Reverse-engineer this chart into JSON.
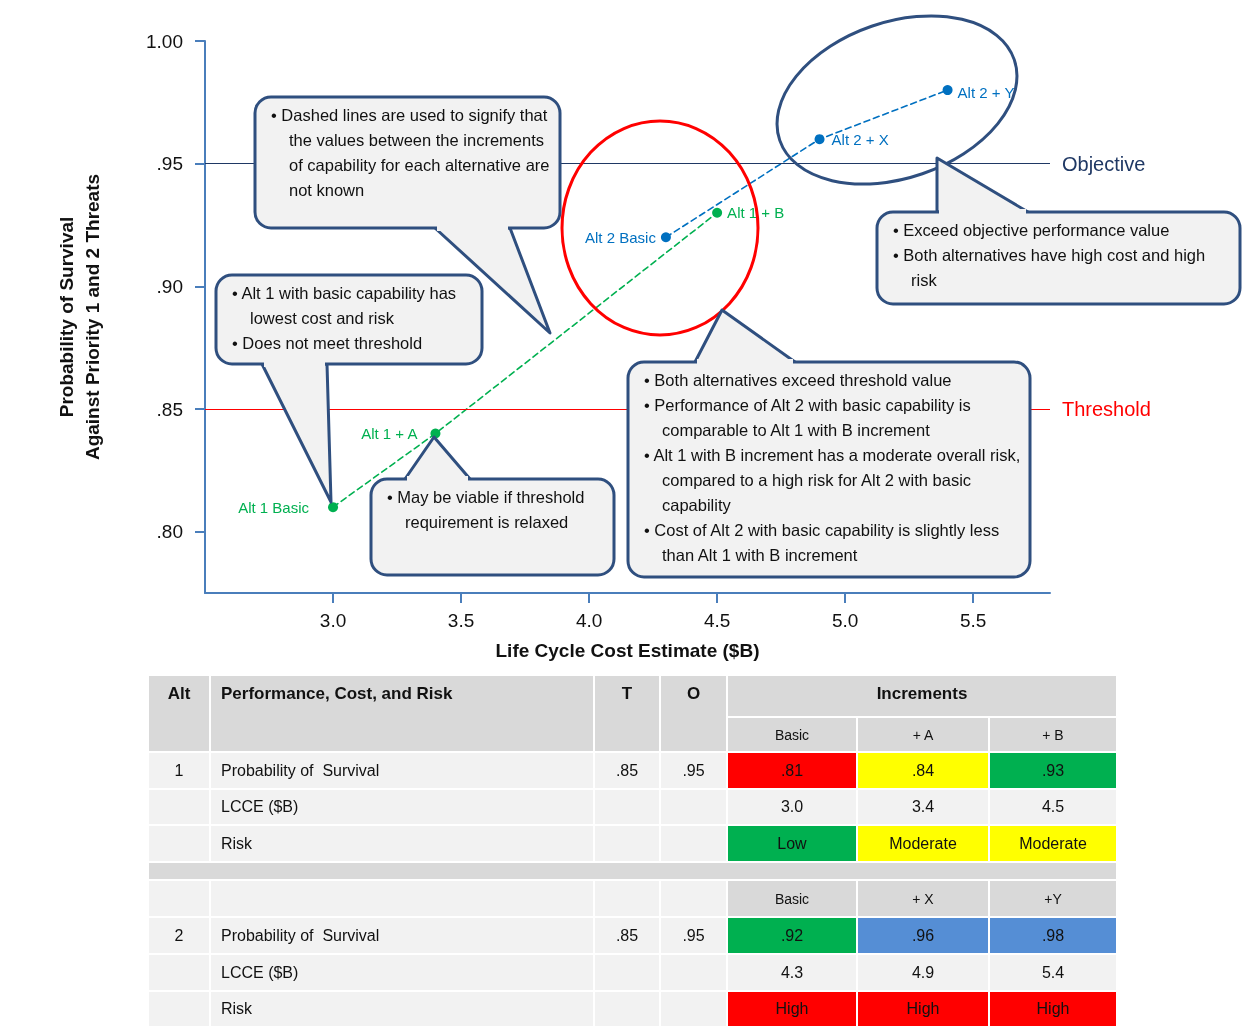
{
  "chart_data": [
    {
      "type": "line",
      "xlabel": "Life Cycle Cost Estimate ($B)",
      "ylabel": "Probability of Survival\nAgainst Priority 1 and 2 Threats",
      "series": [
        {
          "color": "#00b050",
          "x": [
            3.0,
            3.4,
            4.5
          ],
          "values": [
            0.81,
            0.84,
            0.93
          ]
        },
        {
          "color": "#0070c0",
          "x": [
            4.3,
            4.9,
            5.4
          ],
          "values": [
            0.92,
            0.96,
            0.98
          ]
        }
      ],
      "marker": "circle",
      "line_style": "dashed",
      "grid": false,
      "xlim": [
        2.5,
        5.8
      ],
      "xticks": [
        {
          "value": 3,
          "label": "3.0"
        },
        {
          "value": 3.5,
          "label": "3.5"
        },
        {
          "value": 4,
          "label": "4.0"
        },
        {
          "value": 4.5,
          "label": "4.5"
        },
        {
          "value": 5,
          "label": "5.0"
        },
        {
          "value": 5.5,
          "label": "5.5"
        }
      ],
      "ylim": [
        0.775,
        1.0
      ],
      "yticks": [
        {
          "value": 0.8,
          "label": ".80"
        },
        {
          "value": 0.85,
          "label": ".85"
        },
        {
          "value": 0.9,
          "label": ".90"
        },
        {
          "value": 0.95,
          "label": ".95"
        },
        {
          "value": 1.0,
          "label": "1.00"
        }
      ],
      "ref_lines": [
        {
          "axis": "y",
          "value": 0.85,
          "label": "Threshold",
          "color": "#ff0000"
        },
        {
          "axis": "y",
          "value": 0.95,
          "label": "Objective",
          "color": "#1f3864"
        }
      ],
      "annotations": [
        {
          "text": "Alt 1 Basic",
          "x": 3.0,
          "y": 0.81
        },
        {
          "text": "Alt 1 + A",
          "x": 3.4,
          "y": 0.84
        },
        {
          "text": "Alt 1 + B",
          "x": 4.5,
          "y": 0.93
        },
        {
          "text": "Alt 2 Basic",
          "x": 4.3,
          "y": 0.92
        },
        {
          "text": "Alt 2 + X",
          "x": 4.9,
          "y": 0.96
        },
        {
          "text": "Alt 2 + Y",
          "x": 5.4,
          "y": 0.98
        },
        "• Dashed lines are used to signify that the values between the increments of capability for each alternative are not known",
        "• Alt 1 with basic capability has lowest cost and risk\n• Does not meet threshold",
        "• May be viable if threshold requirement is relaxed",
        "• Both alternatives exceed threshold value\n• Performance of Alt 2 with basic capability is comparable to Alt 1 with B increment\n• Alt 1 with B increment has a moderate overall risk, compared to a high risk for Alt 2 with basic capability\n• Cost of Alt 2 with basic capability is slightly less than Alt 1 with B increment",
        "• Exceed objective performance value\n• Both alternatives have high cost and high risk"
      ]
    },
    {
      "type": "other",
      "annotations": [
        "Alt",
        "Performance, Cost, and Risk",
        "T",
        "O",
        "Increments",
        "Basic",
        "+ A",
        "+ B",
        "1",
        "Probability of  Survival",
        ".85",
        ".95",
        ".81",
        ".84",
        ".93",
        "LCCE ($B)",
        "3.0",
        "3.4",
        "4.5",
        "Risk",
        "Low",
        "Moderate",
        "Moderate",
        "Basic",
        "+ X",
        "+Y",
        "2",
        "Probability of  Survival",
        ".85",
        ".95",
        ".92",
        ".96",
        ".98",
        "LCCE ($B)",
        "4.3",
        "4.9",
        "5.4",
        "Risk",
        "High",
        "High",
        "High"
      ],
      "colors": [
        null,
        null,
        null,
        null,
        null,
        null,
        null,
        null,
        null,
        null,
        null,
        null,
        "#ff0000",
        "#ffff00",
        "#00b050",
        null,
        null,
        null,
        null,
        null,
        "#00b050",
        "#ffff00",
        "#ffff00",
        null,
        null,
        null,
        null,
        null,
        null,
        null,
        "#00b050",
        "#558ed5",
        "#558ed5",
        null,
        null,
        null,
        null,
        null,
        "#ff0000",
        "#ff0000",
        "#ff0000"
      ]
    }
  ]
}
